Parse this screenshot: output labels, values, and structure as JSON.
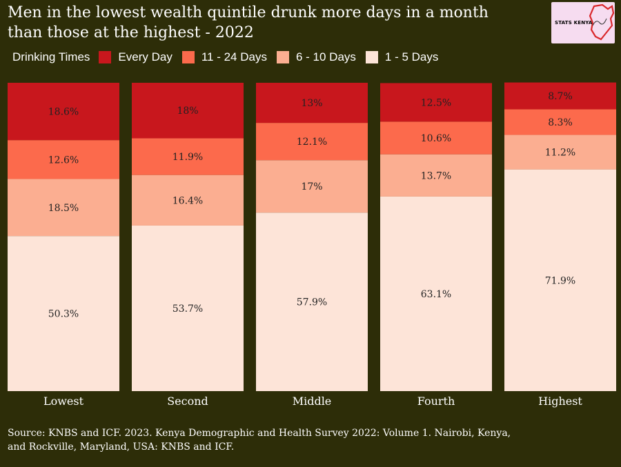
{
  "title_line1": "Men in the lowest wealth quintile drunk more days in a month",
  "title_line2": "than those at the highest - 2022",
  "logo_text": "STATS KENYA",
  "legend": {
    "title": "Drinking Times",
    "items": [
      {
        "label": "Every Day",
        "color": "#c8171d"
      },
      {
        "label": "11 - 24 Days",
        "color": "#fc6a4c"
      },
      {
        "label": "6 - 10 Days",
        "color": "#fbae91"
      },
      {
        "label": "1 - 5 Days",
        "color": "#fde4d8"
      }
    ]
  },
  "source_line1": "Source: KNBS and ICF. 2023. Kenya Demographic and Health Survey 2022: Volume 1. Nairobi, Kenya,",
  "source_line2": "and Rockville, Maryland, USA: KNBS and ICF.",
  "chart_data": {
    "type": "bar",
    "stacked": true,
    "title": "Men in the lowest wealth quintile drunk more days in a month than those at the highest - 2022",
    "xlabel": "",
    "ylabel": "",
    "ylim": [
      0,
      100
    ],
    "categories": [
      "Lowest",
      "Second",
      "Middle",
      "Fourth",
      "Highest"
    ],
    "series": [
      {
        "name": "1 - 5 Days",
        "color": "#fde4d8",
        "values": [
          50.3,
          53.7,
          57.9,
          63.1,
          71.9
        ],
        "labels": [
          "50.3%",
          "53.7%",
          "57.9%",
          "63.1%",
          "71.9%"
        ]
      },
      {
        "name": "6 - 10 Days",
        "color": "#fbae91",
        "values": [
          18.5,
          16.4,
          17,
          13.7,
          11.2
        ],
        "labels": [
          "18.5%",
          "16.4%",
          "17%",
          "13.7%",
          "11.2%"
        ]
      },
      {
        "name": "11 - 24 Days",
        "color": "#fc6a4c",
        "values": [
          12.6,
          11.9,
          12.1,
          10.6,
          8.3
        ],
        "labels": [
          "12.6%",
          "11.9%",
          "12.1%",
          "10.6%",
          "8.3%"
        ]
      },
      {
        "name": "Every Day",
        "color": "#c8171d",
        "values": [
          18.6,
          18,
          13,
          12.5,
          8.7
        ],
        "labels": [
          "18.6%",
          "18%",
          "13%",
          "12.5%",
          "8.7%"
        ]
      }
    ],
    "legend_position": "top-left"
  }
}
